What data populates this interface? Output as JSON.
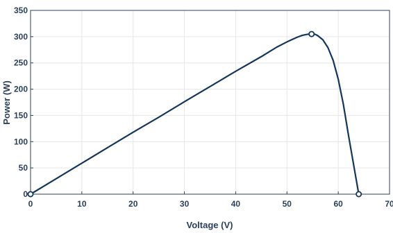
{
  "chart_data": {
    "type": "line",
    "title": "",
    "xlabel": "Voltage (V)",
    "ylabel": "Power (W)",
    "xlim": [
      0,
      70
    ],
    "ylim": [
      0,
      350
    ],
    "xticks": [
      0,
      10,
      20,
      30,
      40,
      50,
      60,
      70
    ],
    "yticks": [
      0,
      50,
      100,
      150,
      200,
      250,
      300,
      350
    ],
    "xtick_labels": [
      "0",
      "10",
      "20",
      "30",
      "40",
      "50",
      "60",
      "70"
    ],
    "ytick_labels": [
      "0",
      "50",
      "100",
      "150",
      "200",
      "250",
      "300",
      "350"
    ],
    "grid": true,
    "line_color": "#14365c",
    "series": [
      {
        "x": [
          0,
          5,
          10,
          15,
          20,
          25,
          30,
          35,
          40,
          45,
          48,
          50,
          52,
          53,
          54,
          54.8,
          55.5,
          56,
          57,
          58,
          59,
          60,
          61,
          62,
          63,
          64
        ],
        "y": [
          0,
          29.5,
          59,
          88.5,
          118,
          146.5,
          176,
          205,
          234,
          262,
          280,
          290,
          299,
          302.5,
          304.5,
          305,
          304.5,
          302,
          294,
          279,
          255,
          219,
          171,
          112,
          56,
          0
        ]
      }
    ],
    "markers": [
      {
        "x": 0,
        "y": 0,
        "style": "circle"
      },
      {
        "x": 54.8,
        "y": 305,
        "style": "circle"
      },
      {
        "x": 64,
        "y": 0,
        "style": "circle"
      }
    ]
  }
}
